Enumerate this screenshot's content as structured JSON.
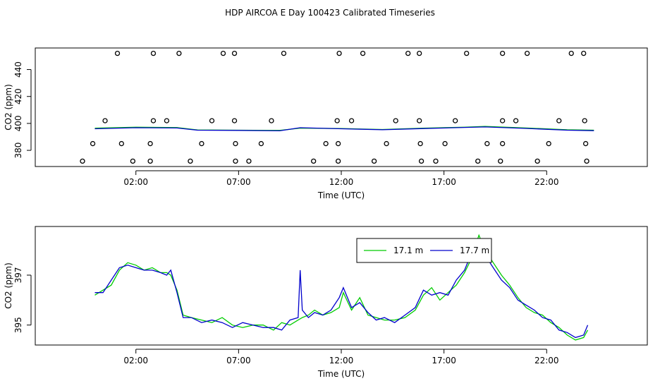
{
  "title": "HDP AIRCOA E  Day 100423  Calibrated Timeseries",
  "chart_data": [
    {
      "type": "scatter+line",
      "ylabel": "CO2 (ppm)",
      "xlabel": "Time (UTC)",
      "xticks": [
        "02:00",
        "07:00",
        "12:00",
        "17:00",
        "22:00"
      ],
      "xtick_hours": [
        2,
        7,
        12,
        17,
        22
      ],
      "xlim": [
        -2.9,
        26.9
      ],
      "yticks": [
        380,
        400,
        420,
        440
      ],
      "ylim": [
        368,
        456
      ],
      "series": [
        {
          "values": [
            [
              0,
              396.5
            ],
            [
              2,
              397.2
            ],
            [
              4,
              396.9
            ],
            [
              5,
              395.2
            ],
            [
              7,
              395.0
            ],
            [
              9,
              394.8
            ],
            [
              10,
              396.5
            ],
            [
              12,
              396.2
            ],
            [
              14,
              395.5
            ],
            [
              16,
              396.5
            ],
            [
              18,
              397.2
            ],
            [
              19,
              397.8
            ],
            [
              21,
              396.6
            ],
            [
              23,
              395.3
            ],
            [
              24.3,
              395.0
            ]
          ]
        },
        {
          "values": [
            [
              0,
              396.0
            ],
            [
              2,
              396.8
            ],
            [
              4,
              396.6
            ],
            [
              5,
              395.0
            ],
            [
              7,
              394.8
            ],
            [
              9,
              394.5
            ],
            [
              10,
              396.8
            ],
            [
              12,
              396.0
            ],
            [
              14,
              395.3
            ],
            [
              16,
              396.2
            ],
            [
              18,
              397.0
            ],
            [
              19,
              397.4
            ],
            [
              21,
              396.3
            ],
            [
              23,
              395.0
            ],
            [
              24.3,
              394.6
            ]
          ]
        }
      ],
      "points": [
        [
          1.1,
          452
        ],
        [
          2.85,
          452
        ],
        [
          4.1,
          452
        ],
        [
          6.25,
          452
        ],
        [
          6.8,
          452
        ],
        [
          9.2,
          452
        ],
        [
          11.9,
          452
        ],
        [
          13.05,
          452
        ],
        [
          15.25,
          452
        ],
        [
          15.8,
          452
        ],
        [
          18.1,
          452
        ],
        [
          19.85,
          452
        ],
        [
          21.05,
          452
        ],
        [
          23.2,
          452
        ],
        [
          23.8,
          452
        ],
        [
          0.5,
          402
        ],
        [
          2.85,
          402
        ],
        [
          3.5,
          402
        ],
        [
          5.7,
          402
        ],
        [
          6.8,
          402
        ],
        [
          8.6,
          402
        ],
        [
          11.8,
          402
        ],
        [
          12.5,
          402
        ],
        [
          14.65,
          402
        ],
        [
          15.8,
          402
        ],
        [
          17.55,
          402
        ],
        [
          19.85,
          402
        ],
        [
          20.5,
          402
        ],
        [
          22.6,
          402
        ],
        [
          23.85,
          402
        ],
        [
          -0.1,
          385
        ],
        [
          1.3,
          385
        ],
        [
          2.7,
          385
        ],
        [
          5.2,
          385
        ],
        [
          6.85,
          385
        ],
        [
          8.1,
          385
        ],
        [
          11.25,
          385
        ],
        [
          11.85,
          385
        ],
        [
          14.2,
          385
        ],
        [
          15.85,
          385
        ],
        [
          17.05,
          385
        ],
        [
          19.1,
          385
        ],
        [
          19.85,
          385
        ],
        [
          22.1,
          385
        ],
        [
          23.9,
          385
        ],
        [
          -0.6,
          372
        ],
        [
          1.85,
          372
        ],
        [
          2.7,
          372
        ],
        [
          4.65,
          372
        ],
        [
          6.85,
          372
        ],
        [
          7.5,
          372
        ],
        [
          10.65,
          372
        ],
        [
          11.85,
          372
        ],
        [
          13.6,
          372
        ],
        [
          15.9,
          372
        ],
        [
          16.6,
          372
        ],
        [
          18.65,
          372
        ],
        [
          19.75,
          372
        ],
        [
          21.55,
          372
        ],
        [
          23.95,
          372
        ]
      ]
    },
    {
      "type": "line",
      "ylabel": "CO2 (ppm)",
      "xlabel": "Time (UTC)",
      "xticks": [
        "02:00",
        "07:00",
        "12:00",
        "17:00",
        "22:00"
      ],
      "xtick_hours": [
        2,
        7,
        12,
        17,
        22
      ],
      "xlim": [
        -2.9,
        26.9
      ],
      "yticks": [
        395,
        397
      ],
      "ylim": [
        394.2,
        398.95
      ],
      "legend": {
        "position": "top-center",
        "entries": [
          "17.1 m",
          "17.7 m"
        ]
      },
      "series": [
        {
          "name": "17.1 m",
          "color": "#00cc00",
          "values": [
            [
              0,
              396.2
            ],
            [
              0.4,
              396.4
            ],
            [
              0.8,
              396.6
            ],
            [
              1.2,
              397.2
            ],
            [
              1.6,
              397.5
            ],
            [
              2.0,
              397.4
            ],
            [
              2.4,
              397.2
            ],
            [
              2.8,
              397.3
            ],
            [
              3.2,
              397.1
            ],
            [
              3.5,
              397.1
            ],
            [
              3.7,
              397.0
            ],
            [
              4.0,
              396.4
            ],
            [
              4.3,
              395.4
            ],
            [
              4.7,
              395.3
            ],
            [
              5.2,
              395.2
            ],
            [
              5.7,
              395.1
            ],
            [
              6.2,
              395.3
            ],
            [
              6.7,
              395.0
            ],
            [
              7.2,
              394.9
            ],
            [
              7.7,
              395.0
            ],
            [
              8.2,
              395.0
            ],
            [
              8.7,
              394.8
            ],
            [
              9.1,
              395.1
            ],
            [
              9.5,
              395.0
            ],
            [
              9.9,
              395.2
            ],
            [
              10.1,
              395.3
            ],
            [
              10.4,
              395.4
            ],
            [
              10.7,
              395.6
            ],
            [
              11.1,
              395.4
            ],
            [
              11.5,
              395.5
            ],
            [
              11.9,
              395.7
            ],
            [
              12.1,
              396.3
            ],
            [
              12.5,
              395.6
            ],
            [
              12.9,
              396.1
            ],
            [
              13.3,
              395.4
            ],
            [
              13.7,
              395.3
            ],
            [
              14.1,
              395.2
            ],
            [
              14.6,
              395.2
            ],
            [
              15.1,
              395.3
            ],
            [
              15.6,
              395.6
            ],
            [
              16.0,
              396.2
            ],
            [
              16.4,
              396.5
            ],
            [
              16.8,
              396.0
            ],
            [
              17.2,
              396.3
            ],
            [
              17.6,
              396.6
            ],
            [
              18.0,
              397.1
            ],
            [
              18.3,
              397.6
            ],
            [
              18.7,
              398.6
            ],
            [
              19.0,
              398.0
            ],
            [
              19.4,
              397.5
            ],
            [
              19.8,
              397.0
            ],
            [
              20.2,
              396.6
            ],
            [
              20.6,
              396.1
            ],
            [
              21.0,
              395.7
            ],
            [
              21.4,
              395.5
            ],
            [
              21.8,
              395.4
            ],
            [
              22.2,
              395.1
            ],
            [
              22.6,
              394.9
            ],
            [
              23.0,
              394.6
            ],
            [
              23.4,
              394.4
            ],
            [
              23.8,
              394.5
            ],
            [
              24.0,
              394.8
            ]
          ]
        },
        {
          "name": "17.7 m",
          "color": "#0000cc",
          "values": [
            [
              0,
              396.3
            ],
            [
              0.4,
              396.3
            ],
            [
              0.8,
              396.8
            ],
            [
              1.2,
              397.3
            ],
            [
              1.6,
              397.4
            ],
            [
              2.0,
              397.3
            ],
            [
              2.4,
              397.2
            ],
            [
              2.8,
              397.2
            ],
            [
              3.2,
              397.1
            ],
            [
              3.5,
              397.0
            ],
            [
              3.7,
              397.2
            ],
            [
              4.0,
              396.3
            ],
            [
              4.3,
              395.3
            ],
            [
              4.7,
              395.3
            ],
            [
              5.2,
              395.1
            ],
            [
              5.7,
              395.2
            ],
            [
              6.2,
              395.1
            ],
            [
              6.7,
              394.9
            ],
            [
              7.2,
              395.1
            ],
            [
              7.7,
              395.0
            ],
            [
              8.2,
              394.9
            ],
            [
              8.7,
              394.9
            ],
            [
              9.1,
              394.8
            ],
            [
              9.5,
              395.2
            ],
            [
              9.9,
              395.3
            ],
            [
              10.0,
              397.2
            ],
            [
              10.1,
              395.6
            ],
            [
              10.4,
              395.3
            ],
            [
              10.7,
              395.5
            ],
            [
              11.1,
              395.4
            ],
            [
              11.5,
              395.6
            ],
            [
              11.9,
              396.1
            ],
            [
              12.1,
              396.5
            ],
            [
              12.5,
              395.7
            ],
            [
              12.9,
              395.9
            ],
            [
              13.3,
              395.5
            ],
            [
              13.7,
              395.2
            ],
            [
              14.1,
              395.3
            ],
            [
              14.6,
              395.1
            ],
            [
              15.1,
              395.4
            ],
            [
              15.6,
              395.7
            ],
            [
              16.0,
              396.4
            ],
            [
              16.4,
              396.2
            ],
            [
              16.8,
              396.3
            ],
            [
              17.2,
              396.2
            ],
            [
              17.6,
              396.8
            ],
            [
              18.0,
              397.2
            ],
            [
              18.3,
              397.8
            ],
            [
              18.7,
              398.4
            ],
            [
              19.0,
              397.8
            ],
            [
              19.4,
              397.3
            ],
            [
              19.8,
              396.8
            ],
            [
              20.2,
              396.5
            ],
            [
              20.6,
              396.0
            ],
            [
              21.0,
              395.8
            ],
            [
              21.4,
              395.6
            ],
            [
              21.8,
              395.3
            ],
            [
              22.2,
              395.2
            ],
            [
              22.6,
              394.8
            ],
            [
              23.0,
              394.7
            ],
            [
              23.4,
              394.5
            ],
            [
              23.8,
              394.6
            ],
            [
              24.0,
              395.0
            ]
          ]
        }
      ]
    }
  ]
}
